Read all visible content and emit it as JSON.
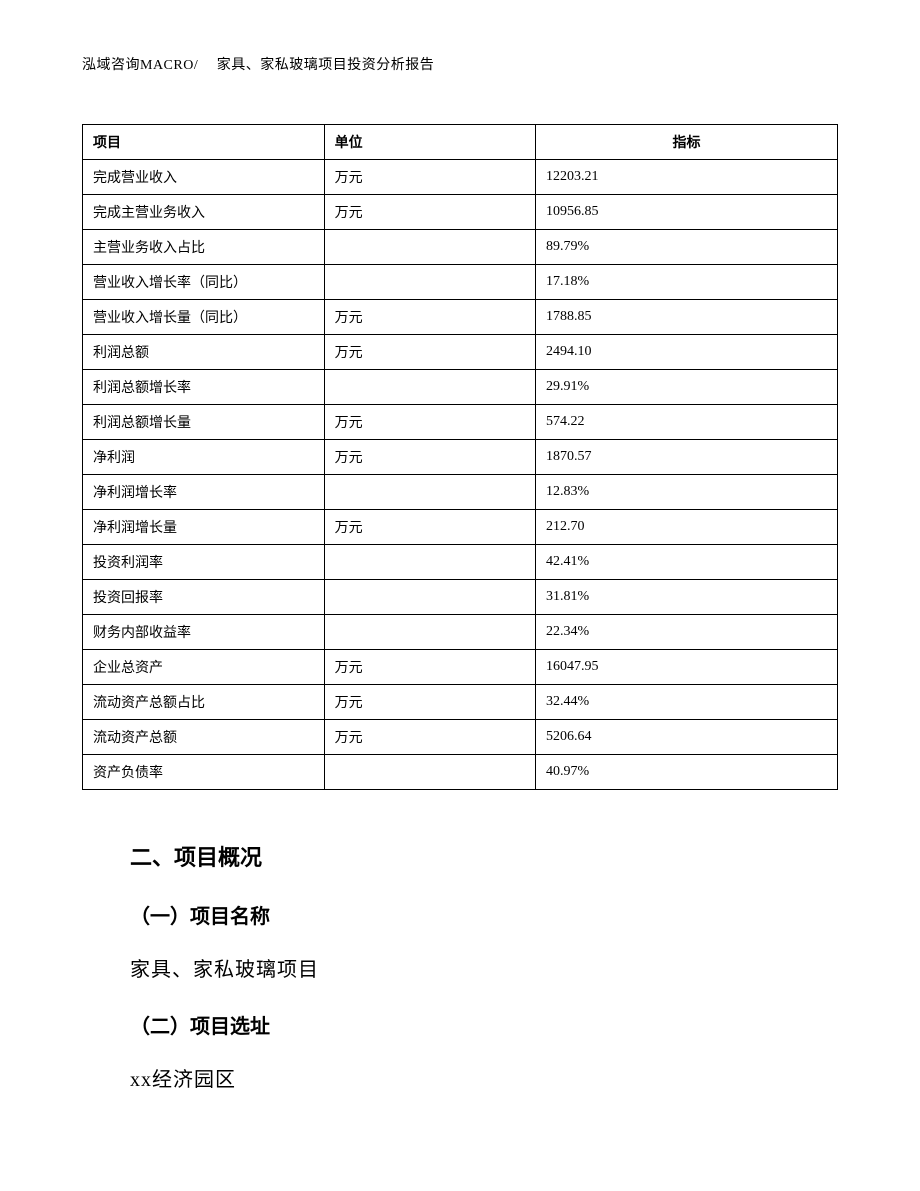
{
  "header": {
    "text": "泓域咨询MACRO/　 家具、家私玻璃项目投资分析报告"
  },
  "table": {
    "columns": [
      "项目",
      "单位",
      "指标"
    ],
    "rows": [
      [
        "完成营业收入",
        "万元",
        "12203.21"
      ],
      [
        "完成主营业务收入",
        "万元",
        "10956.85"
      ],
      [
        "主营业务收入占比",
        "",
        "89.79%"
      ],
      [
        "营业收入增长率（同比）",
        "",
        "17.18%"
      ],
      [
        "营业收入增长量（同比）",
        "万元",
        "1788.85"
      ],
      [
        "利润总额",
        "万元",
        "2494.10"
      ],
      [
        "利润总额增长率",
        "",
        "29.91%"
      ],
      [
        "利润总额增长量",
        "万元",
        "574.22"
      ],
      [
        "净利润",
        "万元",
        "1870.57"
      ],
      [
        "净利润增长率",
        "",
        "12.83%"
      ],
      [
        "净利润增长量",
        "万元",
        "212.70"
      ],
      [
        "投资利润率",
        "",
        "42.41%"
      ],
      [
        "投资回报率",
        "",
        "31.81%"
      ],
      [
        "财务内部收益率",
        "",
        "22.34%"
      ],
      [
        "企业总资产",
        "万元",
        "16047.95"
      ],
      [
        "流动资产总额占比",
        "万元",
        "32.44%"
      ],
      [
        "流动资产总额",
        "万元",
        "5206.64"
      ],
      [
        "资产负债率",
        "",
        "40.97%"
      ]
    ]
  },
  "sections": {
    "main_heading": "二、项目概况",
    "sub1_heading": "（一）项目名称",
    "sub1_text": "家具、家私玻璃项目",
    "sub2_heading": "（二）项目选址",
    "sub2_text": "xx经济园区"
  }
}
